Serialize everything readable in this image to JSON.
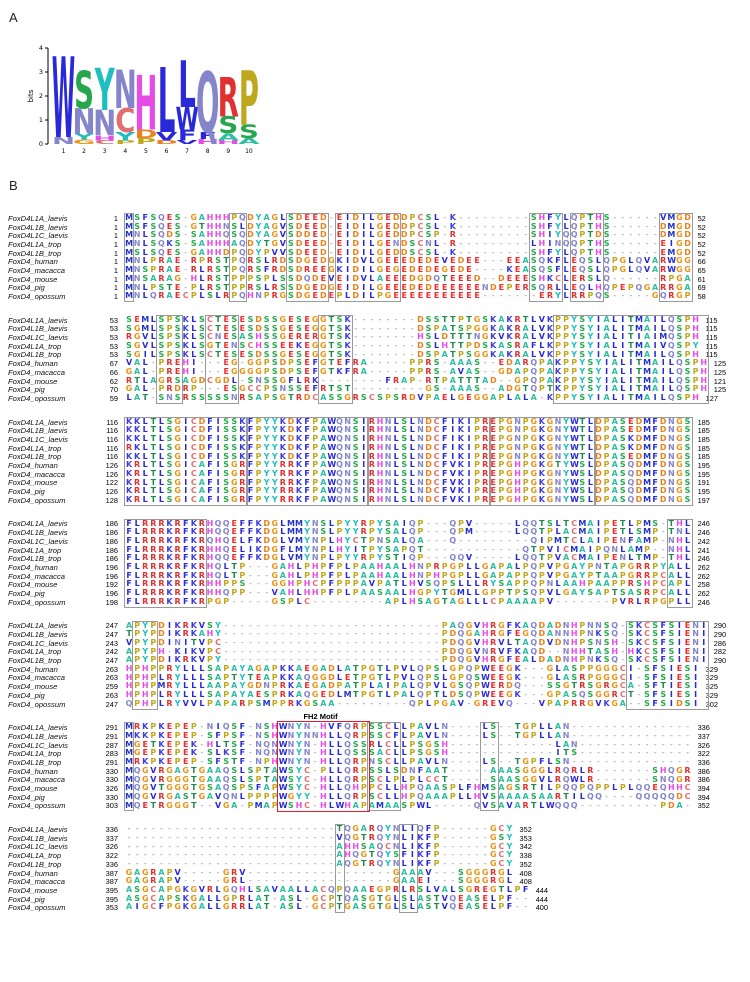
{
  "panels": {
    "a": "A",
    "b": "B"
  },
  "logo": {
    "ylabel": "bits",
    "yticks": [
      "0",
      "1",
      "2",
      "3",
      "4"
    ],
    "xticks": [
      "1",
      "2",
      "3",
      "4",
      "5",
      "6",
      "7",
      "8",
      "9",
      "10"
    ],
    "stacks": [
      [
        {
          "c": "W",
          "h": 3.35
        },
        {
          "c": "N",
          "h": 0.3
        }
      ],
      [
        {
          "c": "S",
          "h": 1.55
        },
        {
          "c": "N",
          "h": 1.05
        },
        {
          "c": "Y",
          "h": 0.25
        },
        {
          "c": "G",
          "h": 0.18
        }
      ],
      [
        {
          "c": "Y",
          "h": 1.75
        },
        {
          "c": "N",
          "h": 1.05
        },
        {
          "c": "H",
          "h": 0.22
        },
        {
          "c": "C",
          "h": 0.15
        }
      ],
      [
        {
          "c": "N",
          "h": 1.6
        },
        {
          "c": "C",
          "h": 1.0
        },
        {
          "c": "Y",
          "h": 0.35
        },
        {
          "c": "P",
          "h": 0.15
        }
      ],
      [
        {
          "c": "H",
          "h": 2.25
        },
        {
          "c": "D",
          "h": 0.35
        },
        {
          "c": "P",
          "h": 0.25
        }
      ],
      [
        {
          "c": "L",
          "h": 2.7
        },
        {
          "c": "V",
          "h": 0.35
        },
        {
          "c": "D",
          "h": 0.15
        }
      ],
      [
        {
          "c": "L",
          "h": 1.95
        },
        {
          "c": "W",
          "h": 0.95
        },
        {
          "c": "F",
          "h": 0.45
        },
        {
          "c": "V",
          "h": 0.15
        }
      ],
      [
        {
          "c": "Q",
          "h": 2.5
        },
        {
          "c": "F",
          "h": 0.3
        },
        {
          "c": "H",
          "h": 0.2
        }
      ],
      [
        {
          "c": "R",
          "h": 1.65
        },
        {
          "c": "S",
          "h": 0.7
        },
        {
          "c": "A",
          "h": 0.3
        },
        {
          "c": "H",
          "h": 0.15
        }
      ],
      [
        {
          "c": "P",
          "h": 2.25
        },
        {
          "c": "S",
          "h": 0.55
        },
        {
          "c": "A",
          "h": 0.25
        }
      ]
    ]
  },
  "colors": {
    "A": "#2ebfa0",
    "C": "#e07070",
    "D": "#e8821e",
    "E": "#f02b2b",
    "F": "#2929d9",
    "G": "#e69517",
    "H": "#e64ce6",
    "I": "#2929d9",
    "K": "#3b3be0",
    "L": "#2929d9",
    "M": "#2233cc",
    "N": "#8585cc",
    "P": "#bfa81f",
    "Q": "#8585cc",
    "R": "#e03030",
    "S": "#26a64d",
    "T": "#1f8c4d",
    "V": "#2929d9",
    "W": "#2929d9",
    "Y": "#1fbfbf",
    "-": "#8a8a8a"
  },
  "alignment": {
    "fh2_label": "FH2 Motif",
    "blocks": [
      {
        "boxes": [
          [
            0,
            0
          ],
          [
            13,
            14
          ],
          [
            20,
            24
          ],
          [
            26,
            33
          ],
          [
            50,
            53
          ],
          [
            55,
            58
          ],
          [
            66,
            69
          ]
        ],
        "rows": [
          {
            "name": "FoxD4L1A_laevis",
            "start": "1",
            "seq": "MSFSQES-GAHHHPQDYAGLSDEED-EIDILGEDDPCSL-K---------SHFYLQPTHS------VMGD",
            "end": "52"
          },
          {
            "name": "FoxD4L1B_laevis",
            "start": "1",
            "seq": "MSFSQES-GTHHNSLDYAGVSDEED-EIDILGEDDPCSL-K---------SHFYLQPTHS------DMGD",
            "end": "52"
          },
          {
            "name": "FoxD4L1C_laevis",
            "start": "1",
            "seq": "MNLSQDS-SAHHQSQDYAGVSDDED-EIDILGEDDPCSP-R---------SHIYQQPTDS------DMGD",
            "end": "52"
          },
          {
            "name": "FoxD4L1A_trop",
            "start": "1",
            "seq": "MNLSQKS-SAHHHAQDYTGVSDEED-EIDILGENDSCNL-R---------LHINQQPTHS------EIGD",
            "end": "52"
          },
          {
            "name": "FoxD4L1B_trop",
            "start": "1",
            "seq": "MSLSQES-GAHHDPQDYPVVSDEED-EIDILGEDDSCSL-K---------SHFYLQPTHS------EMGD",
            "end": "52"
          },
          {
            "name": "FoxD4_human",
            "start": "1",
            "seq": "MNLPRAE-RPRSTPQRSLRDSDGEDGKIDVLGEEEDEDEVEDEE---EEASQKFLEQSLQPGLQVARWGG",
            "end": "66"
          },
          {
            "name": "FoxD4_macacca",
            "start": "1",
            "seq": "MNSPRAE-RLRSTPQRSFRDSDREEGKIDILGEGEDEDEGEDE----KEASQSFLEQSLQPGLQVARWGG",
            "end": "65"
          },
          {
            "name": "FoxD4_mouse",
            "start": "1",
            "seq": "MNSARAG-HLRSTPPPSPLSSDQDEVEIDVLAEEEDGDQTEEED--DEEESHKCLERSLQ------RPGA",
            "end": "61"
          },
          {
            "name": "FoxD4_pig",
            "start": "1",
            "seq": "MNLPSTE-PLRSTPPRSLRSSDGEDGEIDILGEEEDEDEEEEEENDEPERSQRLLEQLHQPEPQGARRGA",
            "end": "69"
          },
          {
            "name": "FoxD4_opossum",
            "start": "1",
            "seq": "MNLQRAECPLSLRPQHNPRGSDGEDEPLDILPGEEEEEEEEEEE-------ERYLRRPQS-----GQRGP",
            "end": "58"
          }
        ]
      },
      {
        "boxes": [
          [
            4,
            6
          ],
          [
            10,
            13
          ],
          [
            24,
            27
          ],
          [
            53,
            71
          ]
        ],
        "rows": [
          {
            "name": "FoxD4L1A_laevis",
            "start": "53",
            "seq": "SEMLSPSKLSCTESESDSSGESEGGTSK--------DSSTTPTGSKAKRTLVKPPYSYIALITMAILQSPH",
            "end": "115"
          },
          {
            "name": "FoxD4L1B_laevis",
            "start": "53",
            "seq": "SGMLSPSKLSCTESESDSSGESEGGTSK--------DSPATSPGGKAKRALVKPPYSYIALITMAILQSPH",
            "end": "115"
          },
          {
            "name": "FoxD4L1C_laevis",
            "start": "53",
            "seq": "RGVLSPSKLSCNESASHSSGERERGTSK--------HSLDTTTNGKVKRALVKPPYSYIALITIAIMQSPH",
            "end": "115"
          },
          {
            "name": "FoxD4L1A_trop",
            "start": "53",
            "seq": "SGVLSPSKLSGTENSCHSSEEKEGGTSK--------DSLHTTPDSKASRAFLKPPYSYIALITMAIVQSPY",
            "end": "115"
          },
          {
            "name": "FoxD4L1B_trop",
            "start": "53",
            "seq": "SGILSPSKLSCTESESDSSGESEGGTSK--------DSPATPSGGKAKRALVKPPYSYIALITMAILQSPH",
            "end": "115"
          },
          {
            "name": "FoxD4_human",
            "start": "67",
            "seq": "VAL-PREHI---EG-GGPSDPSEFGTEFRA-----PPRS-AAAS--EDARQPAKPPYSYIALITMAILQSPH",
            "end": "125"
          },
          {
            "name": "FoxD4_macacca",
            "start": "66",
            "seq": "GAL-PREHI---EGGGGPSDPSEFGTKFRA-----PPRS-AVAS--GDAPQPAKPPYSYIALITMAILQSPH",
            "end": "125"
          },
          {
            "name": "FoxD4_mouse",
            "start": "62",
            "seq": "RTLAGRSAGDCGDL-SNSSGFLRK--------FRAP-RTPATTTAD--GPQPAKPPYSYIALITMAILQSPH",
            "end": "121"
          },
          {
            "name": "FoxD4_pig",
            "start": "70",
            "seq": "GAL-PRDRP---ESGCCPSNSSEFRTST---------GS-AAAS--ADGTQPTKPPYSYIALITMAILQSPH",
            "end": "125"
          },
          {
            "name": "FoxD4_opossum",
            "start": "59",
            "seq": "LAT-SNSRSSSSSNRSAPSGTRDCASSGRSCSPSRDVPAELGEGGAPLALA-KPPYSYIALITMAILQSPH",
            "end": "127"
          }
        ]
      },
      {
        "boxes": [
          [
            0,
            14
          ],
          [
            15,
            29
          ],
          [
            30,
            44
          ],
          [
            45,
            57
          ],
          [
            58,
            69
          ]
        ],
        "rows": [
          {
            "name": "FoxD4L1A_laevis",
            "start": "116",
            "seq": "KKLTLSGICDFISSKFPYYKDKFPAWQNSIRHNLSLNDCFIKIPREPGNPGKGNYWTLDPASEDMFDNGS",
            "end": "185"
          },
          {
            "name": "FoxD4L1B_laevis",
            "start": "116",
            "seq": "KKLTLSGICDFISSKFPYYKDKFPAWQNSIRHNLSLNDCFIKIPREPGNPGKGNYWTLDPASEDMFDNGS",
            "end": "185"
          },
          {
            "name": "FoxD4L1C_laevis",
            "start": "116",
            "seq": "KKLTLSGICDFISSKFPYYKDKFPAWQNSIRHNLSLNDCFIKIPREPGNPGKGNYWTLDPASKDMFDNGS",
            "end": "185"
          },
          {
            "name": "FoxD4L1A_trop",
            "start": "116",
            "seq": "RKLTLSGICDFISSKFPYYKDKFPAWQNSIRHNLSLNDCFIKIPREPGNPGKGNYWTLDPASKDMFDNGS",
            "end": "185"
          },
          {
            "name": "FoxD4L1B_trop",
            "start": "116",
            "seq": "KKLTLSGICDFISSKFPYYKDKFPAWQNSIRHNLSLNDCFIKIPREPGNPGKGNYWTLDPASEDMFDNGS",
            "end": "185"
          },
          {
            "name": "FoxD4_human",
            "start": "126",
            "seq": "KRLTLSGICAFISGRFPYYRRKFPAWQNSIRHNLSLNDCFVKIPREPGHPGKGTYWSLDPASQDMFDNGS",
            "end": "195"
          },
          {
            "name": "FoxD4_macacca",
            "start": "126",
            "seq": "KRLTLSGICAFISGRFPYYRRKFPAWQNSIRHNLSLNDCFVKIPREPGHPGKGNYWSLDPASQDMFDNGS",
            "end": "195"
          },
          {
            "name": "FoxD4_mouse",
            "start": "122",
            "seq": "KRLTLSGICAFISGRFPYYRRKFPAWQNSIRHNLSLNDCFVKIPREPGHPGKGNYWSLDPASQDMFDNGS",
            "end": "191"
          },
          {
            "name": "FoxD4_pig",
            "start": "126",
            "seq": "KRLTLSGICAFISGRFPYYRRKFPAWQNSIRHNLSLNDCFVKIPREPGHPGKGNYWSLDPASQDMFDNGS",
            "end": "195"
          },
          {
            "name": "FoxD4_opossum",
            "start": "128",
            "seq": "KRLTLSGICAFISGRFPYYRRKFPAWQNSIRHNLSLNDCFVKIPREPGHPGKGNYWSLDPASQDMFDNGS",
            "end": "197"
          }
        ]
      },
      {
        "boxes": [
          [
            0,
            9
          ],
          [
            67,
            69
          ]
        ],
        "rows": [
          {
            "name": "FoxD4L1A_laevis",
            "start": "186",
            "seq": "FLRRRKRFKRHQQEFFKDGLMMYNSLPYYRPYSAIQP---QPV-----LQQTSLTCMAIPETLPMS-THL",
            "end": "246"
          },
          {
            "name": "FoxD4L1B_laevis",
            "start": "186",
            "seq": "FLRRRKRFKRHQQEFFKDGLMMYNSLPYYRPYSALQP---QPM-----LQQTPLACMAIPETLSMP-TNL",
            "end": "246"
          },
          {
            "name": "FoxD4L1C_laevis",
            "start": "186",
            "seq": "FLRRRKRFKRQHQELFKDGLVMYNPLHYCTPNSALQA---Q---------QIPMTCLAIPENFAMP-NHL",
            "end": "242"
          },
          {
            "name": "FoxD4L1A_trop",
            "start": "186",
            "seq": "FLRRRKRFKRHHQELIKDGFLMYNPLHYITPYSAPQT------------QTPVICMAIPQNLAMP--NHL",
            "end": "241"
          },
          {
            "name": "FoxD4L1B_trop",
            "start": "186",
            "seq": "FLRRRKRFKRHQQEFFKDGLVMYNPLPYYRPYSTIQP---QQV-----LQQTPVACMAIPENLTMP-THL",
            "end": "246"
          },
          {
            "name": "FoxD4_human",
            "start": "196",
            "seq": "FLRRRKRFKRHQLTP---GAHLPHPFPLPAAHAALHNPRPGPLLGAPALPQPVPGAYPNTAPGRRPYALL",
            "end": "262"
          },
          {
            "name": "FoxD4_macacca",
            "start": "196",
            "seq": "FLRRRKRFKRHQLTP---GAHLPHPFPLPAAHAALHNPHPGPLLGAPAPPQPVPGAYPTAAPGRRPCALL",
            "end": "262"
          },
          {
            "name": "FoxD4_mouse",
            "start": "192",
            "seq": "FLRRRKRFKRHHPPS---GGHPHCPFPPPAVPATLHVSQPSLLLRYSAPPQPNLAAHPAAPPRSHPCAPL",
            "end": "258"
          },
          {
            "name": "FoxD4_pig",
            "start": "196",
            "seq": "FLRRRKRFKRHHQPP---VAHLHHPFPLPAASAALHGPYTGMLLGPPTPSQPVLGAYSAPTSASRPCALL",
            "end": "262"
          },
          {
            "name": "FoxD4_opossum",
            "start": "198",
            "seq": "FLRRRKRFKRPGP-----GSPLC---------APLHSAGTAGLLLCPAAAAPV-------PVRLRPGPLL",
            "end": "246"
          }
        ]
      },
      {
        "boxes": [
          [
            1,
            3
          ],
          [
            62,
            71
          ]
        ],
        "rows": [
          {
            "name": "FoxD4L1A_laevis",
            "start": "247",
            "seq": "APYPDIKRKVSY---------------------------PAQGVHRGFKAQDADNHPNNSQ-SKCSFSIENI",
            "end": "290"
          },
          {
            "name": "FoxD4L1B_laevis",
            "start": "247",
            "seq": "TPYPDIKRKAHY---------------------------PDQGAHRGFEGQDANNHPNKSQ-SKCSFSIENI",
            "end": "290"
          },
          {
            "name": "FoxD4L1C_laevis",
            "start": "243",
            "seq": "VPYPDINITVPC---------------------------PDQGVHRVLTAQDVDNHPSNSH-SKCSFSIENI",
            "end": "286"
          },
          {
            "name": "FoxD4L1A_trop",
            "start": "242",
            "seq": "APYPH-KIKVPC---------------------------PDQGVNRVFKAQD--NHHTASH-HKCSFSIENI",
            "end": "282"
          },
          {
            "name": "FoxD4L1B_trop",
            "start": "247",
            "seq": "APYPDIKRKVPY---------------------------PDQGVHRGFEALDADNHPNKSQ-SKCSFSIENI",
            "end": "290"
          },
          {
            "name": "FoxD4_human",
            "start": "263",
            "seq": "HPHPPRYLLLSAPAYAGAPKKAEGADLATPGTLPVLQPSLGPQPWEEGK---GLASPPGGGCI-SFSIESI",
            "end": "329"
          },
          {
            "name": "FoxD4_macacca",
            "start": "263",
            "seq": "HPHPLRYLLLSAPTYTEAPKKAQGGDLETPGTLPVLQPSLGPQSWEEGK---GLASRPGGGCI-SFSIESI",
            "end": "329"
          },
          {
            "name": "FoxD4_mouse",
            "start": "259",
            "seq": "HPHPMRYLLLAAPAYGDNPRKAEGADPATPLAIPALQPVLGSQPWERDQ---SSGTRSGRGCA-SFTIESI",
            "end": "325"
          },
          {
            "name": "FoxD4_pig",
            "start": "263",
            "seq": "HPHPLRYLLLSAPAYAESPRKAQGEDLMTPGTLPALQPTLDSQPWEEGK---GPASQSGGRCT-SFSIESI",
            "end": "329"
          },
          {
            "name": "FoxD4_opossum",
            "start": "247",
            "seq": "QPHPLRYVVLPAPARPSMPPRKGSAA---------QPLPGAV-GREVQ---VPAPRRGVKGA--SFSIDSI",
            "end": "302"
          }
        ]
      },
      {
        "fh2": [
          19,
          29
        ],
        "boxes": [
          [
            0,
            0
          ],
          [
            30,
            33
          ],
          [
            44,
            45
          ]
        ],
        "rows": [
          {
            "name": "FoxD4L1A_laevis",
            "start": "291",
            "seq": "MRKPKEPEP-NIQSF-NSHWNYN-HVFQRPSSCLLPAVLN----LS--TGPLLAN---------------",
            "end": "336"
          },
          {
            "name": "FoxD4L1B_laevis",
            "start": "291",
            "seq": "MKKPKEPEP-SFPSF-NSHWNYNNHLLQRPSSCFLPAVLN----LS--TGPLLAN---------------",
            "end": "337"
          },
          {
            "name": "FoxD4L1C_laevis",
            "start": "287",
            "seq": "MGETKEPEK-HLTSF-NQNWNYN-HLLQSSRLCLLPSGSH-------------LAN--------------",
            "end": "326"
          },
          {
            "name": "FoxD4L1A_trop",
            "start": "283",
            "seq": "MGEPKEPEK-SLKSF-NQNWNYN-HLLQSSSACLLPSGSH-------------ITS--------------",
            "end": "322"
          },
          {
            "name": "FoxD4L1B_trop",
            "start": "291",
            "seq": "MRKPKEPEP-SFSTF-NPHWNYN-HLLQRPNSCLLPAVLN----LS--TGPFLSN---------------",
            "end": "336"
          },
          {
            "name": "FoxD4_human",
            "start": "330",
            "seq": "MQGVRGAGTGAAQSLSPTAWSYC-PLLQRPSSLSDNFAAT-----AAASGGGLRQRLR-------SHQGR",
            "end": "386"
          },
          {
            "name": "FoxD4_macacca",
            "start": "330",
            "seq": "MQGVRGGGTGAAQSLSPTAWSYC-HLLQRPSCLPLPLCCT-----SAASGGVLRQWLR-------SNQGR",
            "end": "386"
          },
          {
            "name": "FoxD4_mouse",
            "start": "326",
            "seq": "MQGVTGGGTGSAQSPSFAPWSYC-HLLQHPPCLLHPQAASPLFHMSAGSRTILPQQPQPPLPLQQEQHHC",
            "end": "394"
          },
          {
            "name": "FoxD4_pig",
            "start": "330",
            "seq": "MQGVRGASTGAVQNLPPPPWGYY-HLLQRPSCLLHPQAAAPLLHVSAAAASAARTILQQ----QQQQQDC",
            "end": "394"
          },
          {
            "name": "FoxD4_opossum",
            "start": "303",
            "seq": "MQETRGGGT--VGA-PMAPWSHC-HLWHAPAMAASPWL-----QVSAVARTLWQQQ----------PDA-",
            "end": "352"
          }
        ]
      },
      {
        "boxes": [
          [
            26,
            26
          ],
          [
            34,
            35
          ]
        ],
        "rows": [
          {
            "name": "FoxD4L1A_laevis",
            "start": "336",
            "seq": "--------------------------TQGARQYNLIQFP------GCY",
            "end": "352"
          },
          {
            "name": "FoxD4L1B_laevis",
            "start": "337",
            "seq": "--------------------------VQGTRQYNLIKFP------GSY",
            "end": "353"
          },
          {
            "name": "FoxD4L1C_laevis",
            "start": "326",
            "seq": "--------------------------AHHSAQCNLIKFP------GCY",
            "end": "342"
          },
          {
            "name": "FoxD4L1A_trop",
            "start": "322",
            "seq": "--------------------------AHQGTQYSFIKFP------GCY",
            "end": "338"
          },
          {
            "name": "FoxD4L1B_trop",
            "start": "336",
            "seq": "--------------------------AQGTRQYNLIKFP------GCY",
            "end": "352"
          },
          {
            "name": "FoxD4_human",
            "start": "387",
            "seq": "GAGRAPV-----GRV------------------GAAAV---SGGGRGL",
            "end": "408"
          },
          {
            "name": "FoxD4_macacca",
            "start": "387",
            "seq": "GAGRAPV-----GRL------------------GAAEI---SGGGRGL",
            "end": "408"
          },
          {
            "name": "FoxD4_mouse",
            "start": "395",
            "seq": "ASGCAPGKGVRLGQHLSAVAALLACQPQAAEGPRLRSLVALSGREGTLPF",
            "end": "444"
          },
          {
            "name": "FoxD4_pig",
            "start": "395",
            "seq": "ASGCAPSKGALLGPRLAT-ASL-GCPTQASGTGLSLASTVQEASELPF--",
            "end": "444"
          },
          {
            "name": "FoxD4_opossum",
            "start": "353",
            "seq": "AIGCFPGKGALLGRRLAT-ASL-GCPTGASGTGLSLASTVQEASELPF--",
            "end": "400"
          }
        ]
      }
    ]
  }
}
